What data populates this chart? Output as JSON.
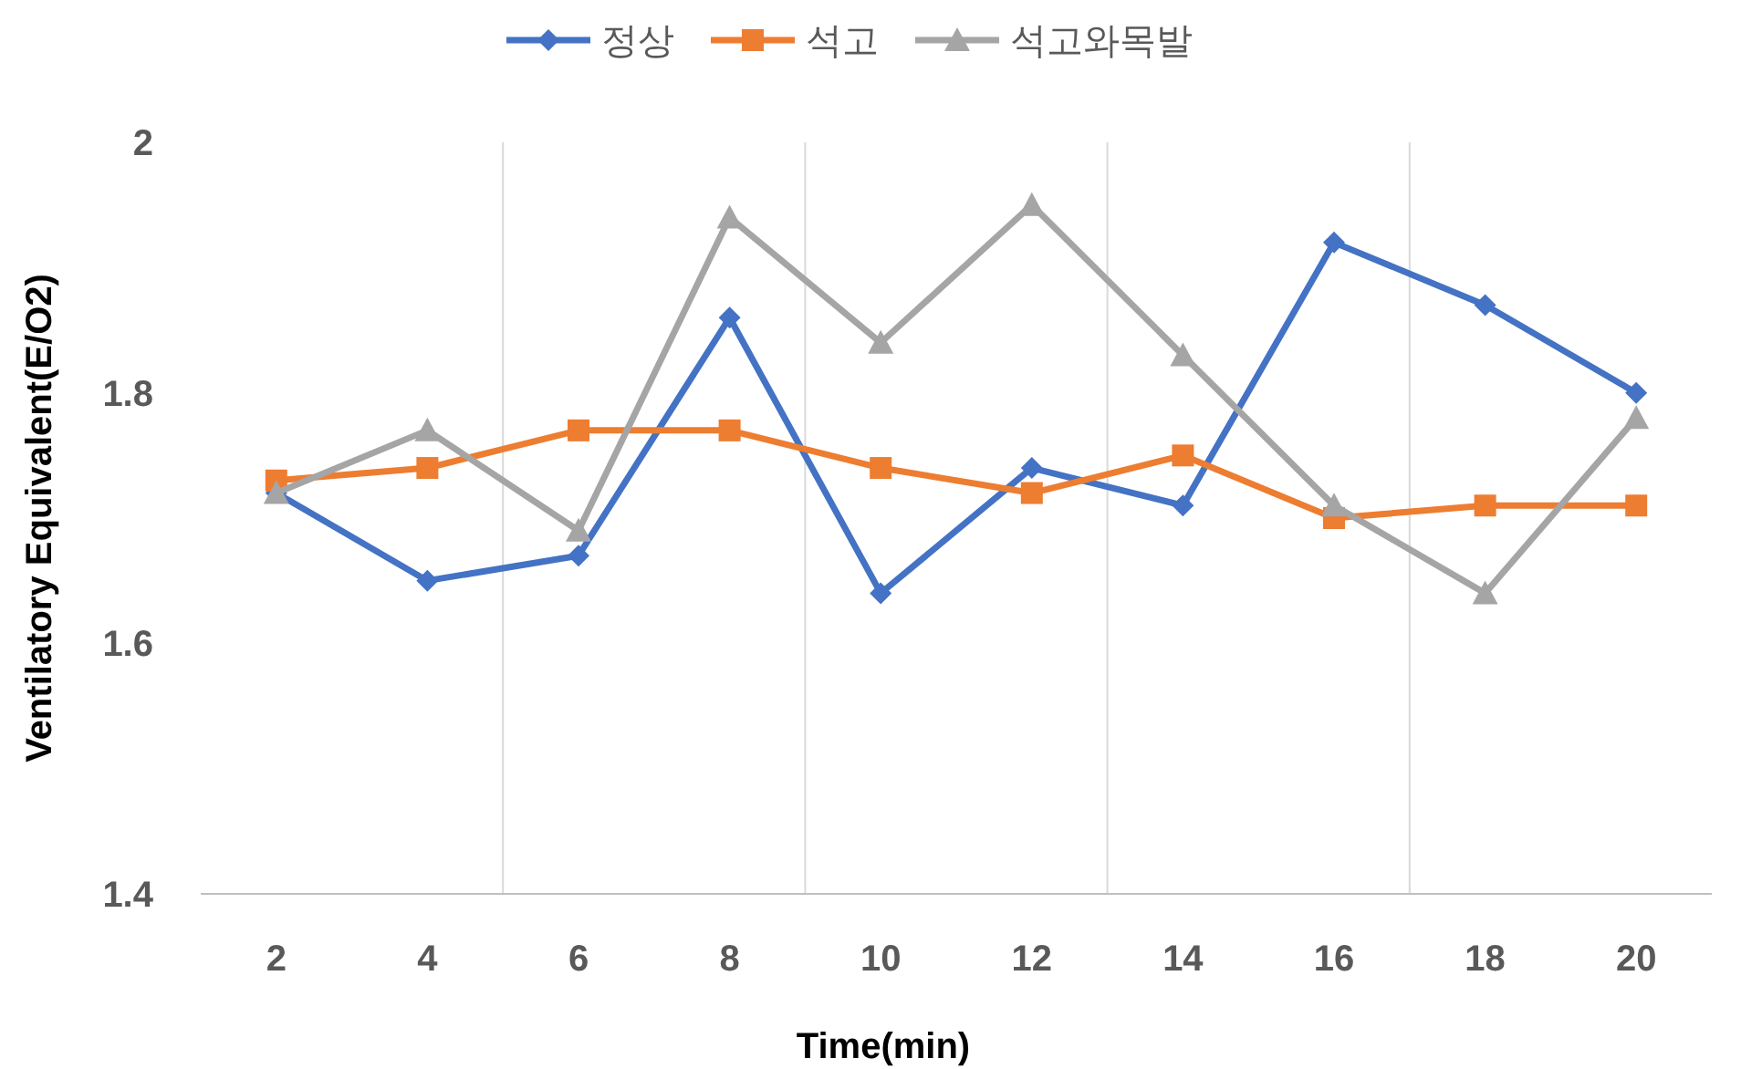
{
  "chart_data": {
    "type": "line",
    "xlabel": "Time(min)",
    "ylabel": "Ventilatory Equivalent(E/O2)",
    "categories": [
      "2",
      "4",
      "6",
      "8",
      "10",
      "12",
      "14",
      "16",
      "18",
      "20"
    ],
    "ylim": [
      1.4,
      2
    ],
    "yticks": [
      1.4,
      1.6,
      1.8,
      2
    ],
    "grid": "x",
    "legend": "top",
    "line_style": "solid",
    "series": [
      {
        "name": "정상",
        "color": "#4472c4",
        "marker": "diamond",
        "values": [
          1.72,
          1.65,
          1.67,
          1.86,
          1.64,
          1.74,
          1.71,
          1.92,
          1.87,
          1.8
        ]
      },
      {
        "name": "석고",
        "color": "#ed7d31",
        "marker": "square",
        "values": [
          1.73,
          1.74,
          1.77,
          1.77,
          1.74,
          1.72,
          1.75,
          1.7,
          1.71,
          1.71
        ]
      },
      {
        "name": "석고와목발",
        "color": "#a5a5a5",
        "marker": "triangle",
        "values": [
          1.72,
          1.77,
          1.69,
          1.94,
          1.84,
          1.95,
          1.83,
          1.71,
          1.64,
          1.78
        ]
      }
    ]
  }
}
